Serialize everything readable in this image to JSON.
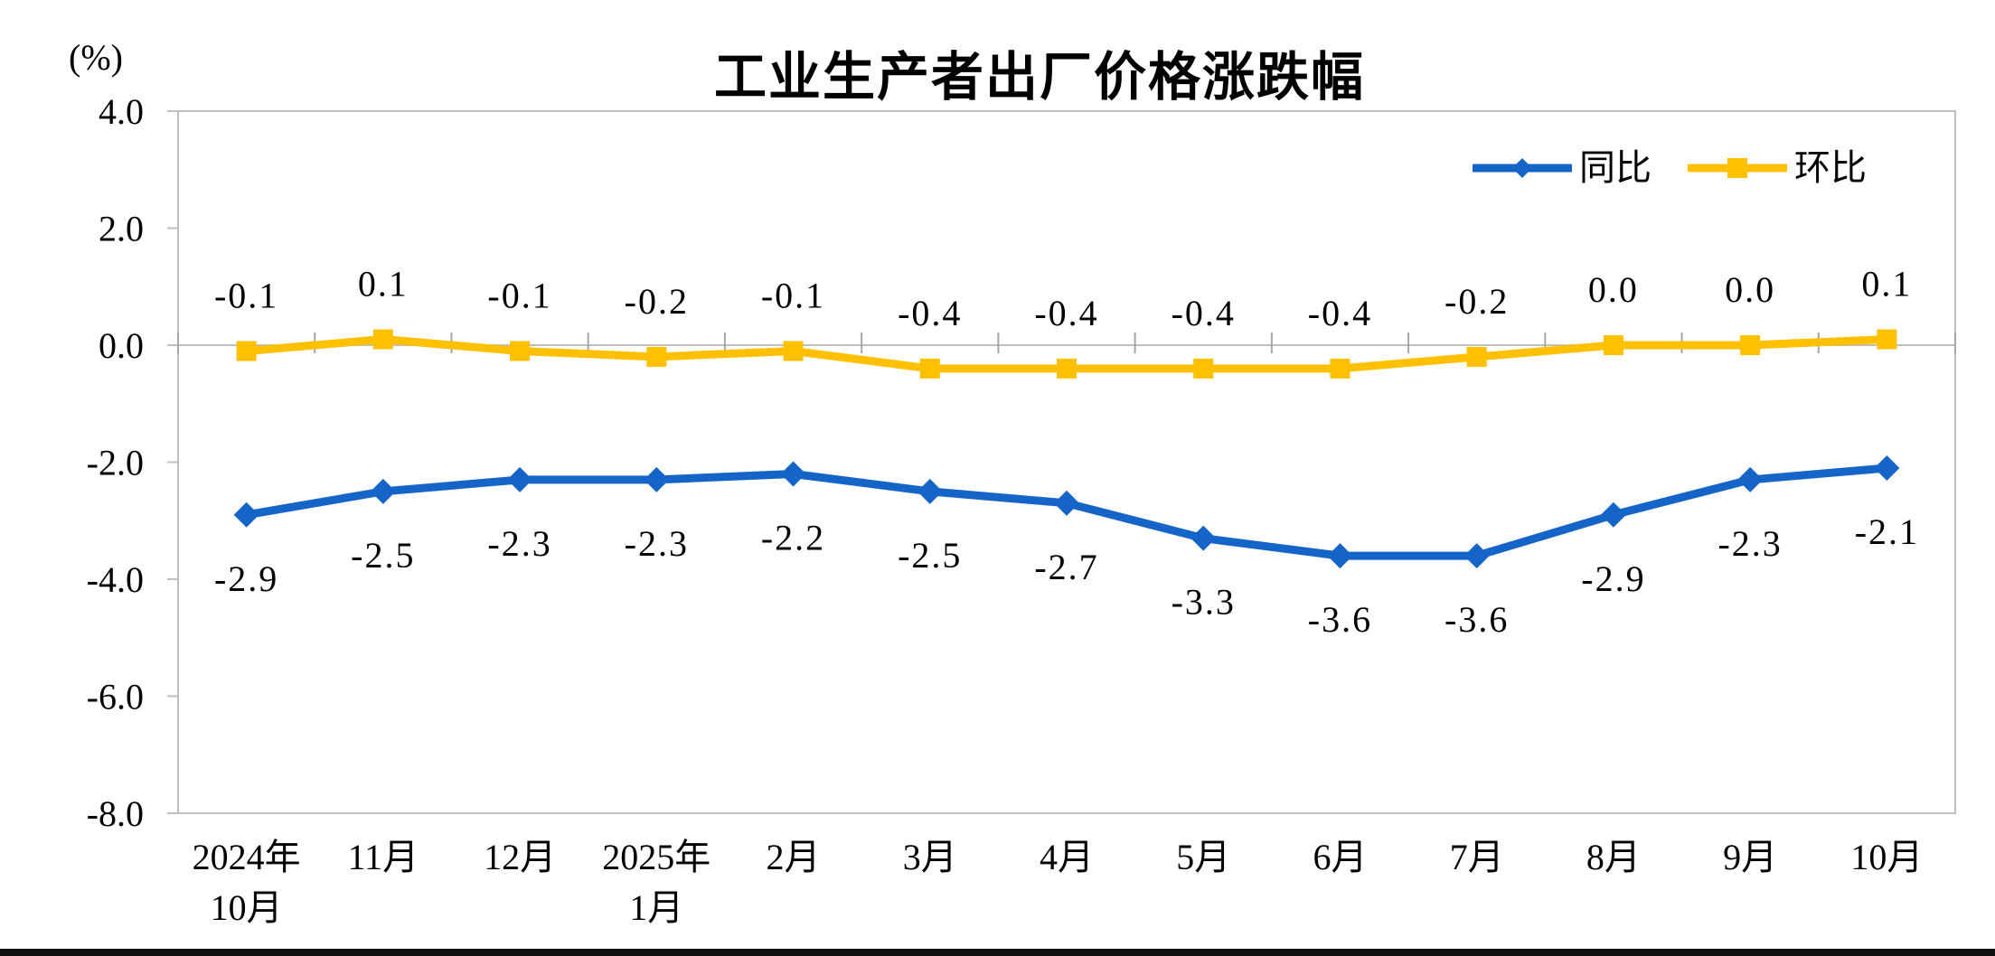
{
  "chart_data": {
    "type": "line",
    "title": "工业生产者出厂价格涨跌幅",
    "unit_label": "(%)",
    "categories": [
      [
        "2024年",
        "10月"
      ],
      [
        "11月"
      ],
      [
        "12月"
      ],
      [
        "2025年",
        "1月"
      ],
      [
        "2月"
      ],
      [
        "3月"
      ],
      [
        "4月"
      ],
      [
        "5月"
      ],
      [
        "6月"
      ],
      [
        "7月"
      ],
      [
        "8月"
      ],
      [
        "9月"
      ],
      [
        "10月"
      ]
    ],
    "ylim": [
      -8.0,
      4.0
    ],
    "ytick_step": 2.0,
    "yticks": [
      "4.0",
      "2.0",
      "0.0",
      "-2.0",
      "-4.0",
      "-6.0",
      "-8.0"
    ],
    "grid": false,
    "legend_position": "top-right",
    "axis_color": "#BFBFBF",
    "tick_color": "#A6A6A6",
    "series": [
      {
        "name": "同比",
        "color": "#1565C8",
        "marker": "diamond",
        "label_position": "below",
        "values": [
          -2.9,
          -2.5,
          -2.3,
          -2.3,
          -2.2,
          -2.5,
          -2.7,
          -3.3,
          -3.6,
          -3.6,
          -2.9,
          -2.3,
          -2.1
        ],
        "labels": [
          "-2.9",
          "-2.5",
          "-2.3",
          "-2.3",
          "-2.2",
          "-2.5",
          "-2.7",
          "-3.3",
          "-3.6",
          "-3.6",
          "-2.9",
          "-2.3",
          "-2.1"
        ]
      },
      {
        "name": "环比",
        "color": "#FFC000",
        "marker": "square",
        "label_position": "above",
        "values": [
          -0.1,
          0.1,
          -0.1,
          -0.2,
          -0.1,
          -0.4,
          -0.4,
          -0.4,
          -0.4,
          -0.2,
          0.0,
          0.0,
          0.1
        ],
        "labels": [
          "-0.1",
          "0.1",
          "-0.1",
          "-0.2",
          "-0.1",
          "-0.4",
          "-0.4",
          "-0.4",
          "-0.4",
          "-0.2",
          "0.0",
          "0.0",
          "0.1"
        ]
      }
    ]
  }
}
